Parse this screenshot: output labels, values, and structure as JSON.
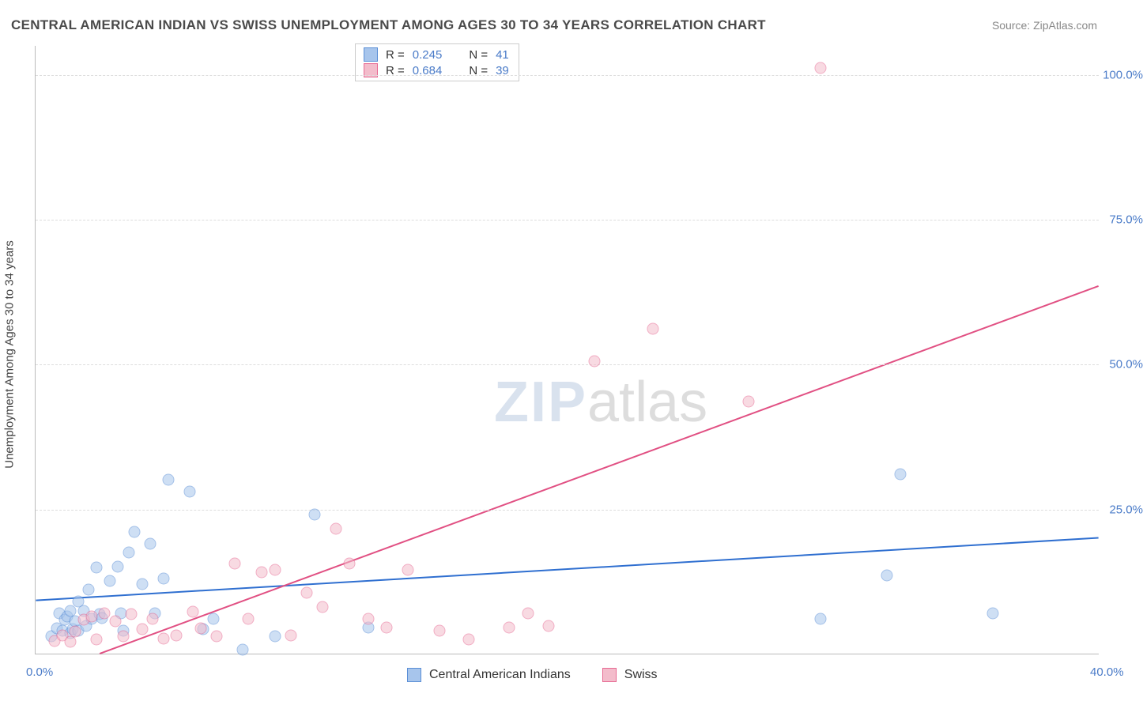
{
  "title": "CENTRAL AMERICAN INDIAN VS SWISS UNEMPLOYMENT AMONG AGES 30 TO 34 YEARS CORRELATION CHART",
  "source": "Source: ZipAtlas.com",
  "y_axis_title": "Unemployment Among Ages 30 to 34 years",
  "watermark_zip": "ZIP",
  "watermark_atlas": "atlas",
  "chart": {
    "type": "scatter",
    "xlim": [
      0,
      40
    ],
    "ylim": [
      0,
      105
    ],
    "x_ticks": [
      {
        "v": 0,
        "label": "0.0%"
      },
      {
        "v": 40,
        "label": "40.0%"
      }
    ],
    "y_ticks": [
      {
        "v": 25,
        "label": "25.0%"
      },
      {
        "v": 50,
        "label": "50.0%"
      },
      {
        "v": 75,
        "label": "75.0%"
      },
      {
        "v": 100,
        "label": "100.0%"
      }
    ],
    "background_color": "#ffffff",
    "grid_color": "#dddddd",
    "marker_size": 15,
    "marker_opacity": 0.55,
    "series": [
      {
        "name": "Central American Indians",
        "color_fill": "#a7c5ec",
        "color_stroke": "#5b8fd6",
        "R": "0.245",
        "N": "41",
        "trend": {
          "x1": 0,
          "y1": 9.2,
          "x2": 40,
          "y2": 20.0,
          "color": "#2f6fd0",
          "width": 2
        },
        "points": [
          [
            0.6,
            3.0
          ],
          [
            0.8,
            4.4
          ],
          [
            0.9,
            7.0
          ],
          [
            1.0,
            4.0
          ],
          [
            1.1,
            5.8
          ],
          [
            1.2,
            6.4
          ],
          [
            1.3,
            3.6
          ],
          [
            1.3,
            7.4
          ],
          [
            1.4,
            4.2
          ],
          [
            1.5,
            5.6
          ],
          [
            1.6,
            9.0
          ],
          [
            1.6,
            4.0
          ],
          [
            1.8,
            7.3
          ],
          [
            1.9,
            4.8
          ],
          [
            2.0,
            11.0
          ],
          [
            2.1,
            6.0
          ],
          [
            2.3,
            14.8
          ],
          [
            2.4,
            6.8
          ],
          [
            2.5,
            6.2
          ],
          [
            2.8,
            12.5
          ],
          [
            3.1,
            15.0
          ],
          [
            3.2,
            7.0
          ],
          [
            3.3,
            4.0
          ],
          [
            3.5,
            17.5
          ],
          [
            3.7,
            21.0
          ],
          [
            4.0,
            12.0
          ],
          [
            4.3,
            19.0
          ],
          [
            4.5,
            7.0
          ],
          [
            4.8,
            13.0
          ],
          [
            5.0,
            30.0
          ],
          [
            5.8,
            28.0
          ],
          [
            6.3,
            4.2
          ],
          [
            6.7,
            6.0
          ],
          [
            7.8,
            0.7
          ],
          [
            9.0,
            3.0
          ],
          [
            10.5,
            24.0
          ],
          [
            12.5,
            4.5
          ],
          [
            29.5,
            6.0
          ],
          [
            32.0,
            13.5
          ],
          [
            32.5,
            31.0
          ],
          [
            36.0,
            7.0
          ]
        ]
      },
      {
        "name": "Swiss",
        "color_fill": "#f3bccb",
        "color_stroke": "#e76a93",
        "R": "0.684",
        "N": "39",
        "trend": {
          "x1": 2.4,
          "y1": 0,
          "x2": 40,
          "y2": 63.5,
          "color": "#e15083",
          "width": 2
        },
        "points": [
          [
            0.7,
            2.2
          ],
          [
            1.0,
            3.2
          ],
          [
            1.3,
            2.0
          ],
          [
            1.5,
            3.8
          ],
          [
            1.8,
            5.8
          ],
          [
            2.1,
            6.4
          ],
          [
            2.3,
            2.4
          ],
          [
            2.6,
            7.0
          ],
          [
            3.0,
            5.6
          ],
          [
            3.3,
            3.0
          ],
          [
            3.6,
            6.8
          ],
          [
            4.0,
            4.2
          ],
          [
            4.4,
            6.0
          ],
          [
            4.8,
            2.6
          ],
          [
            5.3,
            3.2
          ],
          [
            5.9,
            7.2
          ],
          [
            6.2,
            4.4
          ],
          [
            6.8,
            3.0
          ],
          [
            7.5,
            15.5
          ],
          [
            8.0,
            6.0
          ],
          [
            8.5,
            14.0
          ],
          [
            9.0,
            14.5
          ],
          [
            9.6,
            3.2
          ],
          [
            10.2,
            10.5
          ],
          [
            10.8,
            8.0
          ],
          [
            11.3,
            21.5
          ],
          [
            11.8,
            15.5
          ],
          [
            12.5,
            6.0
          ],
          [
            13.2,
            4.5
          ],
          [
            14.0,
            14.5
          ],
          [
            15.2,
            4.0
          ],
          [
            16.3,
            2.5
          ],
          [
            17.8,
            4.5
          ],
          [
            18.5,
            7.0
          ],
          [
            19.3,
            4.8
          ],
          [
            21.0,
            50.5
          ],
          [
            23.2,
            56.0
          ],
          [
            26.8,
            43.5
          ],
          [
            29.5,
            101.0
          ]
        ]
      }
    ]
  },
  "stats_labels": {
    "R": "R =",
    "N": "N ="
  },
  "legend": {
    "items": [
      "Central American Indians",
      "Swiss"
    ]
  }
}
